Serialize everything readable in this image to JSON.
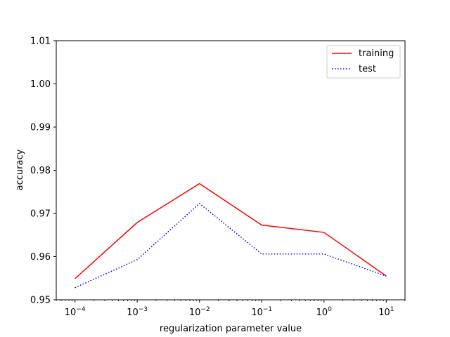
{
  "chart_data": {
    "type": "line",
    "xlabel": "regularization parameter value",
    "ylabel": "accuracy",
    "xscale": "log",
    "xlim": [
      5e-05,
      20
    ],
    "ylim": [
      0.95,
      1.01
    ],
    "x": [
      0.0001,
      0.001,
      0.01,
      0.1,
      1,
      10
    ],
    "x_tick_labels": [
      {
        "base": "10",
        "exp": "−4"
      },
      {
        "base": "10",
        "exp": "−3"
      },
      {
        "base": "10",
        "exp": "−2"
      },
      {
        "base": "10",
        "exp": "−1"
      },
      {
        "base": "10",
        "exp": "0"
      },
      {
        "base": "10",
        "exp": "1"
      }
    ],
    "y_ticks": [
      0.95,
      0.96,
      0.97,
      0.98,
      0.99,
      1.0,
      1.01
    ],
    "y_tick_labels": [
      "0.95",
      "0.96",
      "0.97",
      "0.98",
      "0.99",
      "1.00",
      "1.01"
    ],
    "grid": false,
    "legend_position": "top-right",
    "series": [
      {
        "name": "training",
        "values": [
          0.9549,
          0.9679,
          0.9769,
          0.9673,
          0.9656,
          0.9555
        ],
        "color": "#ff0000",
        "style": "solid"
      },
      {
        "name": "test",
        "values": [
          0.9528,
          0.9593,
          0.9723,
          0.9606,
          0.9606,
          0.9555
        ],
        "color": "#0000ff",
        "style": "dotted"
      }
    ]
  }
}
